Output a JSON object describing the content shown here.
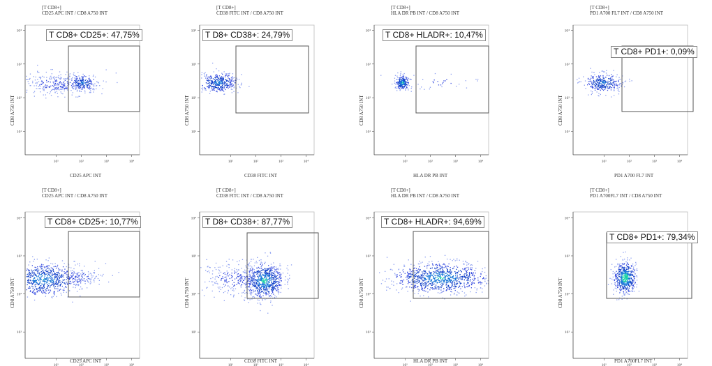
{
  "header_line1": "[T CD8+]",
  "rows": [
    {
      "panels": [
        {
          "title2": "CD25 APC INT / CD8 A750 INT",
          "xlabel": "CD25 APC INT",
          "ylabel": "CD8 A750 INT",
          "gate": "T CD8+ CD25+: 47,75%"
        },
        {
          "title2": "CD38 FITC INT / CD8 A750 INT",
          "xlabel": "CD38 FITC INT",
          "ylabel": "CD8 A750 INT",
          "gate": "T D8+ CD38+: 24,79%"
        },
        {
          "title2": "HLA DR PB INT / CD8 A750 INT",
          "xlabel": "HLA DR PB INT",
          "ylabel": "CD8 A750 INT",
          "gate": "T CD8+ HLADR+: 10,47%"
        },
        {
          "title2": "PD1 A700 FL7 INT / CD8 A750 INT",
          "xlabel": "PD1 A700 FL7 INT",
          "ylabel": "CD8 A750 INT",
          "gate": "T CD8+ PD1+: 0,09%"
        }
      ]
    },
    {
      "panels": [
        {
          "title2": "CD25 APC INT / CD8 A750 INT",
          "xlabel": "CD25 APC INT",
          "ylabel": "CD8 A750 INT",
          "gate": "T CD8+ CD25+: 10,77%"
        },
        {
          "title2": "CD38 FITC INT / CD8 A750 INT",
          "xlabel": "CD38 FITC INT",
          "ylabel": "CD8 A750 INT",
          "gate": "T D8+ CD38+: 87,77%"
        },
        {
          "title2": "HLA DR PB INT / CD8 A750 INT",
          "xlabel": "HLA DR PB INT",
          "ylabel": "CD8 A750 INT",
          "gate": "T CD8+ HLADR+: 94,69%"
        },
        {
          "title2": "PD1 A700FL7 INT / CD8 A750 INT",
          "xlabel": "PD1 A700FL7 INT",
          "ylabel": "CD8 A750 INT",
          "gate": "T CD8+ PD1+: 79,34%"
        }
      ]
    }
  ],
  "tick_labels": {
    "x": [
      "10¹",
      "10²",
      "10³",
      "10⁴"
    ],
    "y": [
      "10⁴",
      "10³",
      "10²",
      "10¹"
    ]
  },
  "chart_data": [
    {
      "type": "scatter",
      "title": "[T CD8+] CD25 APC INT / CD8 A750 INT",
      "xlabel": "CD25 APC INT",
      "ylabel": "CD8 A750 INT",
      "scale": "log",
      "gate": {
        "label": "T CD8+ CD25+: 47,75%",
        "percent": 47.75
      },
      "population_center": {
        "x": 25,
        "y": 200
      }
    },
    {
      "type": "scatter",
      "title": "[T CD8+] CD38 FITC INT / CD8 A750 INT",
      "xlabel": "CD38 FITC INT",
      "ylabel": "CD8 A750 INT",
      "scale": "log",
      "gate": {
        "label": "T D8+ CD38+: 24,79%",
        "percent": 24.79
      },
      "population_center": {
        "x": 15,
        "y": 200
      }
    },
    {
      "type": "scatter",
      "title": "[T CD8+] HLA DR PB INT / CD8 A750 INT",
      "xlabel": "HLA DR PB INT",
      "ylabel": "CD8 A750 INT",
      "scale": "log",
      "gate": {
        "label": "T CD8+ HLADR+: 10,47%",
        "percent": 10.47
      },
      "population_center": {
        "x": 10,
        "y": 200
      }
    },
    {
      "type": "scatter",
      "title": "[T CD8+] PD1 A700 FL7 INT / CD8 A750 INT",
      "xlabel": "PD1 A700 FL7 INT",
      "ylabel": "CD8 A750 INT",
      "scale": "log",
      "gate": {
        "label": "T CD8+ PD1+: 0,09%",
        "percent": 0.09
      },
      "population_center": {
        "x": 15,
        "y": 200
      }
    },
    {
      "type": "scatter",
      "title": "[T CD8+] CD25 APC INT / CD8 A750 INT",
      "xlabel": "CD25 APC INT",
      "ylabel": "CD8 A750 INT",
      "scale": "log",
      "gate": {
        "label": "T CD8+ CD25+: 10,77%",
        "percent": 10.77
      },
      "population_center": {
        "x": 8,
        "y": 200
      }
    },
    {
      "type": "scatter",
      "title": "[T CD8+] CD38 FITC INT / CD8 A750 INT",
      "xlabel": "CD38 FITC INT",
      "ylabel": "CD8 A750 INT",
      "scale": "log",
      "gate": {
        "label": "T D8+ CD38+: 87,77%",
        "percent": 87.77
      },
      "population_center": {
        "x": 200,
        "y": 200
      }
    },
    {
      "type": "scatter",
      "title": "[T CD8+] HLA DR PB INT / CD8 A750 INT",
      "xlabel": "HLA DR PB INT",
      "ylabel": "CD8 A750 INT",
      "scale": "log",
      "gate": {
        "label": "T CD8+ HLADR+: 94,69%",
        "percent": 94.69
      },
      "population_center": {
        "x": 200,
        "y": 200
      }
    },
    {
      "type": "scatter",
      "title": "[T CD8+] PD1 A700FL7 INT / CD8 A750 INT",
      "xlabel": "PD1 A700FL7 INT",
      "ylabel": "CD8 A750 INT",
      "scale": "log",
      "gate": {
        "label": "T CD8+ PD1+: 79,34%",
        "percent": 79.34
      },
      "population_center": {
        "x": 40,
        "y": 200
      }
    }
  ]
}
